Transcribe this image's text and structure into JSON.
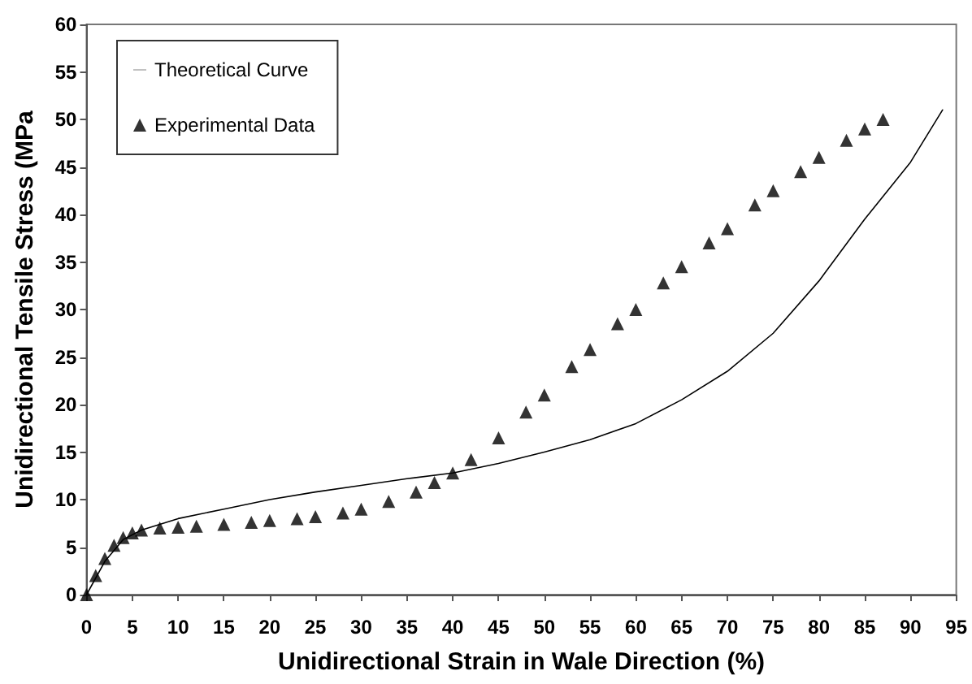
{
  "chart_data": {
    "type": "line",
    "xlabel": "Unidirectional Strain in Wale Direction (%)",
    "ylabel": "Unidirectional Tensile Stress (MPa",
    "xlim": [
      0,
      95
    ],
    "xticks": [
      0,
      5,
      10,
      15,
      20,
      25,
      30,
      35,
      40,
      45,
      50,
      55,
      60,
      65,
      70,
      75,
      80,
      85,
      90,
      95
    ],
    "ylim": [
      0,
      60
    ],
    "yticks": [
      0,
      5,
      10,
      15,
      20,
      25,
      30,
      35,
      40,
      45,
      50,
      55,
      60
    ],
    "grid": false,
    "legend": "top left",
    "series": [
      {
        "name": "Theoretical Curve",
        "marker": "none",
        "line_style": "solid",
        "color": "#000000",
        "x": [
          0,
          2,
          4,
          6,
          8,
          10,
          15,
          20,
          25,
          30,
          35,
          40,
          45,
          50,
          55,
          60,
          65,
          70,
          75,
          80,
          85,
          90,
          93.5
        ],
        "values": [
          0,
          3.5,
          5.8,
          6.8,
          7.4,
          8,
          9,
          10,
          10.8,
          11.5,
          12.2,
          12.8,
          13.8,
          15,
          16.3,
          18,
          20.5,
          23.5,
          27.5,
          33,
          39.5,
          45.5,
          51
        ]
      },
      {
        "name": "Experimental Data",
        "type": "scatter",
        "marker": "triangle",
        "color": "#000000",
        "x": [
          0,
          1,
          2,
          3,
          4,
          5,
          6,
          8,
          10,
          12,
          15,
          18,
          20,
          23,
          25,
          28,
          30,
          33,
          36,
          38,
          40,
          42,
          45,
          48,
          50,
          53,
          55,
          58,
          60,
          63,
          65,
          68,
          70,
          73,
          75,
          78,
          80,
          83,
          85,
          87
        ],
        "values": [
          0,
          2,
          3.8,
          5.2,
          6,
          6.5,
          6.8,
          7,
          7.1,
          7.2,
          7.4,
          7.6,
          7.8,
          8,
          8.2,
          8.6,
          9,
          9.8,
          10.8,
          11.8,
          12.8,
          14.2,
          16.5,
          19.2,
          21,
          24,
          25.8,
          28.5,
          30,
          32.8,
          34.5,
          37,
          38.5,
          41,
          42.5,
          44.5,
          46,
          47.8,
          49,
          50
        ]
      }
    ]
  }
}
